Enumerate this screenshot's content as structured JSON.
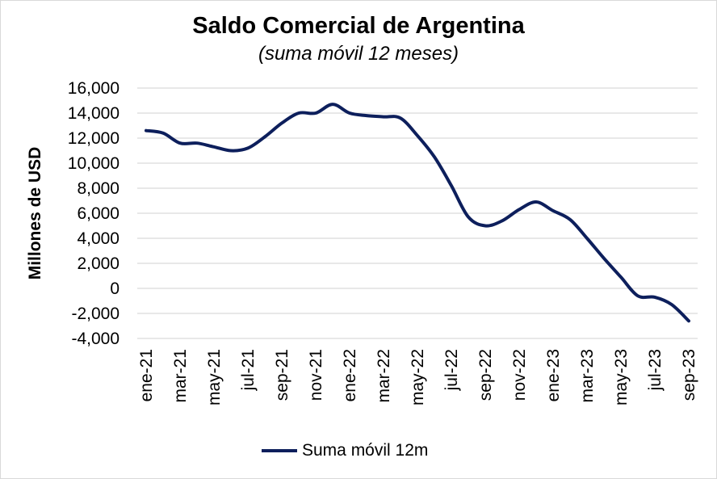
{
  "chart_data": {
    "type": "line",
    "title": "Saldo Comercial de Argentina",
    "subtitle": "(suma móvil 12 meses)",
    "ylabel": "Millones de USD",
    "xlabel": "",
    "ylim": [
      -4000,
      16000
    ],
    "yticks": [
      16000,
      14000,
      12000,
      10000,
      8000,
      6000,
      4000,
      2000,
      0,
      -2000,
      -4000
    ],
    "ytick_labels": [
      "16,000",
      "14,000",
      "12,000",
      "10,000",
      "8,000",
      "6,000",
      "4,000",
      "2,000",
      "0",
      "-2,000",
      "-4,000"
    ],
    "grid": true,
    "legend_position": "bottom",
    "x": [
      "ene-21",
      "feb-21",
      "mar-21",
      "abr-21",
      "may-21",
      "jun-21",
      "jul-21",
      "ago-21",
      "sep-21",
      "oct-21",
      "nov-21",
      "dic-21",
      "ene-22",
      "feb-22",
      "mar-22",
      "abr-22",
      "may-22",
      "jun-22",
      "jul-22",
      "ago-22",
      "sep-22",
      "oct-22",
      "nov-22",
      "dic-22",
      "ene-23",
      "feb-23",
      "mar-23",
      "abr-23",
      "may-23",
      "jun-23",
      "jul-23",
      "ago-23",
      "sep-23"
    ],
    "x_tick_labels": [
      "ene-21",
      "mar-21",
      "may-21",
      "jul-21",
      "sep-21",
      "nov-21",
      "ene-22",
      "mar-22",
      "may-22",
      "jul-22",
      "sep-22",
      "nov-22",
      "ene-23",
      "mar-23",
      "may-23",
      "jul-23",
      "sep-23"
    ],
    "series": [
      {
        "name": "Suma móvil 12m",
        "color": "#0d1f5c",
        "values": [
          12600,
          12400,
          11600,
          11600,
          11300,
          11000,
          11200,
          12100,
          13200,
          14000,
          14000,
          14700,
          14000,
          13800,
          13700,
          13600,
          12200,
          10500,
          8200,
          5700,
          5000,
          5400,
          6300,
          6900,
          6200,
          5500,
          4000,
          2400,
          900,
          -600,
          -700,
          -1300,
          -2600
        ]
      }
    ]
  }
}
